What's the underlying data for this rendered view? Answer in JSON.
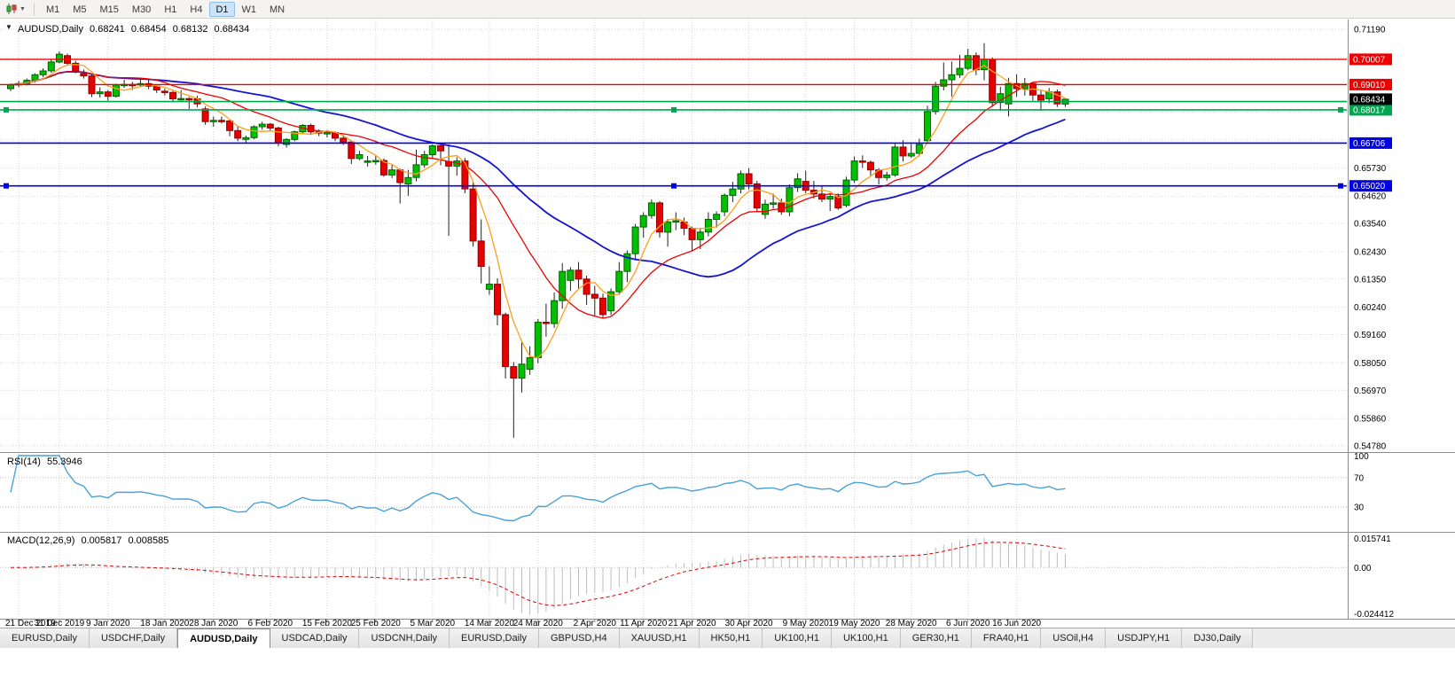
{
  "toolbar": {
    "chart_type_icon": "candlestick-chart-icon",
    "caret_glyph": "▼",
    "timeframes": [
      "M1",
      "M5",
      "M15",
      "M30",
      "H1",
      "H4",
      "D1",
      "W1",
      "MN"
    ],
    "active_timeframe": "D1"
  },
  "chart": {
    "symbol": "AUDUSD,Daily",
    "open": "0.68241",
    "high": "0.68454",
    "low": "0.68132",
    "close": "0.68434",
    "one_click_glyph": "▼"
  },
  "indicators": {
    "rsi": {
      "label": "RSI(14)",
      "value": "55.3946",
      "color": "#4aa1d8",
      "level_labels": [
        "100",
        "70",
        "30"
      ],
      "levels": [
        70,
        30
      ]
    },
    "macd": {
      "label": "MACD(12,26,9)",
      "main_value": "0.005817",
      "signal_value": "0.008585",
      "axis_labels": {
        "top": "0.015741",
        "zero": "0.00",
        "bottom": "-0.024412"
      },
      "bar_color": "#bdbdbd",
      "signal_color": "#e00000"
    }
  },
  "chart_data": {
    "type": "candlestick",
    "symbol": "AUDUSD",
    "timeframe": "Daily",
    "candles": [
      [
        0.6885,
        0.6905,
        0.6875,
        0.69
      ],
      [
        0.69,
        0.6915,
        0.689,
        0.6905
      ],
      [
        0.6905,
        0.6925,
        0.6898,
        0.6918
      ],
      [
        0.6918,
        0.6945,
        0.691,
        0.694
      ],
      [
        0.694,
        0.6965,
        0.693,
        0.6955
      ],
      [
        0.6955,
        0.7,
        0.6948,
        0.699
      ],
      [
        0.699,
        0.7032,
        0.6985,
        0.7021
      ],
      [
        0.7015,
        0.7023,
        0.6978,
        0.6985
      ],
      [
        0.6985,
        0.6995,
        0.6945,
        0.695
      ],
      [
        0.6945,
        0.696,
        0.6925,
        0.6935
      ],
      [
        0.6935,
        0.694,
        0.6852,
        0.6865
      ],
      [
        0.6865,
        0.689,
        0.685,
        0.6872
      ],
      [
        0.6872,
        0.688,
        0.6838,
        0.6855
      ],
      [
        0.6855,
        0.6905,
        0.685,
        0.69
      ],
      [
        0.69,
        0.692,
        0.6888,
        0.6902
      ],
      [
        0.6902,
        0.6912,
        0.688,
        0.69
      ],
      [
        0.69,
        0.6925,
        0.6893,
        0.6905
      ],
      [
        0.6905,
        0.692,
        0.6883,
        0.6895
      ],
      [
        0.6895,
        0.69,
        0.6868,
        0.688
      ],
      [
        0.6875,
        0.6885,
        0.6858,
        0.687
      ],
      [
        0.687,
        0.6876,
        0.6833,
        0.6845
      ],
      [
        0.6845,
        0.688,
        0.6838,
        0.6846
      ],
      [
        0.6846,
        0.6852,
        0.6805,
        0.6845
      ],
      [
        0.6845,
        0.6856,
        0.6812,
        0.6825
      ],
      [
        0.6805,
        0.6815,
        0.6743,
        0.6755
      ],
      [
        0.6755,
        0.6775,
        0.6735,
        0.676
      ],
      [
        0.676,
        0.6775,
        0.6748,
        0.6758
      ],
      [
        0.6758,
        0.6762,
        0.6698,
        0.672
      ],
      [
        0.672,
        0.6735,
        0.6678,
        0.669
      ],
      [
        0.6685,
        0.67,
        0.667,
        0.6692
      ],
      [
        0.6692,
        0.674,
        0.6685,
        0.6735
      ],
      [
        0.6735,
        0.6755,
        0.6723,
        0.6745
      ],
      [
        0.6745,
        0.675,
        0.6718,
        0.673
      ],
      [
        0.673,
        0.6735,
        0.6658,
        0.667
      ],
      [
        0.6665,
        0.669,
        0.6653,
        0.6685
      ],
      [
        0.6685,
        0.672,
        0.6678,
        0.6715
      ],
      [
        0.6715,
        0.6745,
        0.6708,
        0.674
      ],
      [
        0.674,
        0.6747,
        0.6703,
        0.6715
      ],
      [
        0.6715,
        0.6725,
        0.6698,
        0.671
      ],
      [
        0.671,
        0.6722,
        0.6693,
        0.6712
      ],
      [
        0.6712,
        0.6717,
        0.6678,
        0.669
      ],
      [
        0.669,
        0.67,
        0.6663,
        0.6675
      ],
      [
        0.6675,
        0.668,
        0.6588,
        0.661
      ],
      [
        0.661,
        0.664,
        0.6603,
        0.6625
      ],
      [
        0.66,
        0.662,
        0.6578,
        0.66
      ],
      [
        0.66,
        0.6625,
        0.6585,
        0.6602
      ],
      [
        0.6602,
        0.661,
        0.6538,
        0.6545
      ],
      [
        0.6545,
        0.6585,
        0.6533,
        0.6565
      ],
      [
        0.6565,
        0.657,
        0.6433,
        0.6515
      ],
      [
        0.651,
        0.6565,
        0.6463,
        0.6535
      ],
      [
        0.6535,
        0.6645,
        0.652,
        0.6585
      ],
      [
        0.6585,
        0.664,
        0.6573,
        0.6625
      ],
      [
        0.6625,
        0.6665,
        0.6608,
        0.666
      ],
      [
        0.666,
        0.6672,
        0.6583,
        0.664
      ],
      [
        0.6598,
        0.6665,
        0.6305,
        0.658
      ],
      [
        0.658,
        0.6615,
        0.6543,
        0.66
      ],
      [
        0.66,
        0.6612,
        0.6473,
        0.649
      ],
      [
        0.649,
        0.652,
        0.6263,
        0.6285
      ],
      [
        0.6285,
        0.637,
        0.6118,
        0.6185
      ],
      [
        0.6095,
        0.6185,
        0.6073,
        0.6115
      ],
      [
        0.6115,
        0.6138,
        0.5953,
        0.5995
      ],
      [
        0.5995,
        0.6003,
        0.5743,
        0.579
      ],
      [
        0.579,
        0.5808,
        0.551,
        0.5745
      ],
      [
        0.5745,
        0.5888,
        0.5688,
        0.58
      ],
      [
        0.578,
        0.587,
        0.5758,
        0.5825
      ],
      [
        0.5825,
        0.5978,
        0.5803,
        0.5965
      ],
      [
        0.5965,
        0.6038,
        0.5908,
        0.596
      ],
      [
        0.596,
        0.6082,
        0.5943,
        0.605
      ],
      [
        0.605,
        0.6198,
        0.6018,
        0.6165
      ],
      [
        0.613,
        0.6182,
        0.6088,
        0.617
      ],
      [
        0.617,
        0.6202,
        0.6098,
        0.6135
      ],
      [
        0.6135,
        0.6148,
        0.6033,
        0.6075
      ],
      [
        0.6075,
        0.6108,
        0.5988,
        0.606
      ],
      [
        0.606,
        0.6078,
        0.5983,
        0.5995
      ],
      [
        0.601,
        0.6098,
        0.5993,
        0.6085
      ],
      [
        0.6085,
        0.6202,
        0.6073,
        0.6165
      ],
      [
        0.6165,
        0.6248,
        0.6123,
        0.6235
      ],
      [
        0.6235,
        0.6352,
        0.6213,
        0.634
      ],
      [
        0.634,
        0.6398,
        0.6298,
        0.6385
      ],
      [
        0.6385,
        0.6448,
        0.6373,
        0.6435
      ],
      [
        0.6435,
        0.6442,
        0.6298,
        0.632
      ],
      [
        0.632,
        0.6372,
        0.6263,
        0.636
      ],
      [
        0.636,
        0.6398,
        0.6328,
        0.6365
      ],
      [
        0.636,
        0.6377,
        0.6308,
        0.6335
      ],
      [
        0.6335,
        0.6342,
        0.6248,
        0.629
      ],
      [
        0.629,
        0.6332,
        0.6253,
        0.632
      ],
      [
        0.632,
        0.6398,
        0.6303,
        0.637
      ],
      [
        0.637,
        0.6402,
        0.6338,
        0.639
      ],
      [
        0.64,
        0.6472,
        0.6383,
        0.6465
      ],
      [
        0.6465,
        0.6518,
        0.6438,
        0.649
      ],
      [
        0.649,
        0.6562,
        0.6473,
        0.655
      ],
      [
        0.655,
        0.6572,
        0.6488,
        0.651
      ],
      [
        0.651,
        0.6522,
        0.6398,
        0.6415
      ],
      [
        0.639,
        0.6448,
        0.6373,
        0.643
      ],
      [
        0.643,
        0.6472,
        0.6413,
        0.6435
      ],
      [
        0.6435,
        0.6452,
        0.6388,
        0.64
      ],
      [
        0.64,
        0.6508,
        0.6383,
        0.6495
      ],
      [
        0.6495,
        0.6552,
        0.6478,
        0.653
      ],
      [
        0.652,
        0.6562,
        0.6473,
        0.6485
      ],
      [
        0.6485,
        0.6522,
        0.6453,
        0.647
      ],
      [
        0.647,
        0.6502,
        0.6438,
        0.645
      ],
      [
        0.645,
        0.6472,
        0.6403,
        0.646
      ],
      [
        0.646,
        0.6472,
        0.6408,
        0.6415
      ],
      [
        0.6425,
        0.6538,
        0.6418,
        0.6525
      ],
      [
        0.6525,
        0.6618,
        0.6513,
        0.66
      ],
      [
        0.66,
        0.6622,
        0.6573,
        0.6595
      ],
      [
        0.6595,
        0.6602,
        0.6543,
        0.6565
      ],
      [
        0.6565,
        0.6572,
        0.6508,
        0.6535
      ],
      [
        0.6535,
        0.6558,
        0.6523,
        0.6545
      ],
      [
        0.6545,
        0.6668,
        0.6538,
        0.6655
      ],
      [
        0.6655,
        0.6682,
        0.6598,
        0.662
      ],
      [
        0.662,
        0.6668,
        0.6613,
        0.663
      ],
      [
        0.663,
        0.6688,
        0.6618,
        0.6665
      ],
      [
        0.668,
        0.6818,
        0.667,
        0.6795
      ],
      [
        0.6795,
        0.6912,
        0.6783,
        0.6895
      ],
      [
        0.6895,
        0.6988,
        0.6878,
        0.692
      ],
      [
        0.692,
        0.6992,
        0.6853,
        0.694
      ],
      [
        0.694,
        0.7018,
        0.6928,
        0.6965
      ],
      [
        0.6965,
        0.7042,
        0.6958,
        0.7015
      ],
      [
        0.7015,
        0.7028,
        0.6938,
        0.696
      ],
      [
        0.696,
        0.7064,
        0.6918,
        0.7
      ],
      [
        0.7,
        0.7008,
        0.6813,
        0.683
      ],
      [
        0.683,
        0.6892,
        0.6798,
        0.6865
      ],
      [
        0.6825,
        0.6928,
        0.6776,
        0.6905
      ],
      [
        0.6905,
        0.6942,
        0.6853,
        0.6885
      ],
      [
        0.6885,
        0.6927,
        0.6858,
        0.6905
      ],
      [
        0.6905,
        0.6912,
        0.6838,
        0.686
      ],
      [
        0.686,
        0.6877,
        0.6798,
        0.684
      ],
      [
        0.6845,
        0.6888,
        0.6828,
        0.6872
      ],
      [
        0.6872,
        0.6882,
        0.6813,
        0.6825
      ],
      [
        0.68241,
        0.68454,
        0.68132,
        0.68434
      ]
    ],
    "x_ticks": [
      {
        "label": "21 Dec 2019",
        "i": 1
      },
      {
        "label": "31 Dec 2019",
        "i": 6
      },
      {
        "label": "9 Jan 2020",
        "i": 12
      },
      {
        "label": "18 Jan 2020",
        "i": 19
      },
      {
        "label": "28 Jan 2020",
        "i": 25
      },
      {
        "label": "6 Feb 2020",
        "i": 32
      },
      {
        "label": "15 Feb 2020",
        "i": 39
      },
      {
        "label": "25 Feb 2020",
        "i": 45
      },
      {
        "label": "5 Mar 2020",
        "i": 52
      },
      {
        "label": "14 Mar 2020",
        "i": 59
      },
      {
        "label": "24 Mar 2020",
        "i": 65
      },
      {
        "label": "2 Apr 2020",
        "i": 72
      },
      {
        "label": "11 Apr 2020",
        "i": 78
      },
      {
        "label": "21 Apr 2020",
        "i": 84
      },
      {
        "label": "30 Apr 2020",
        "i": 91
      },
      {
        "label": "9 May 2020",
        "i": 98
      },
      {
        "label": "19 May 2020",
        "i": 104
      },
      {
        "label": "28 May 2020",
        "i": 111
      },
      {
        "label": "6 Jun 2020",
        "i": 118
      },
      {
        "label": "16 Jun 2020",
        "i": 124
      }
    ],
    "y_axis": {
      "range": [
        0.5478,
        0.7119
      ],
      "grid_prices": [
        0.7119,
        0.70098,
        0.69006,
        0.67914,
        0.66822,
        0.6573,
        0.6462,
        0.6354,
        0.6243,
        0.6135,
        0.6024,
        0.5916,
        0.5805,
        0.5697,
        0.5586,
        0.5478
      ],
      "visible_labels": [
        "0.71190",
        "0.65730",
        "0.64620",
        "0.63540",
        "0.62430",
        "0.61350",
        "0.60240",
        "0.59160",
        "0.58050",
        "0.56970",
        "0.55860",
        "0.54780"
      ]
    },
    "current_price_box": {
      "text": "0.68434",
      "price": 0.68434,
      "color": "#000000"
    },
    "hlines": [
      {
        "price": 0.70007,
        "label": "0.70007",
        "color": "#ee0000",
        "width": 1.4,
        "handles": false,
        "boxed": true
      },
      {
        "price": 0.6901,
        "label": "0.69010",
        "color": "#ee0000",
        "width": 1.4,
        "handles": false,
        "boxed": true
      },
      {
        "price": 0.6834,
        "label": "",
        "color": "#00a550",
        "width": 1.6,
        "handles": false,
        "boxed": false
      },
      {
        "price": 0.68017,
        "label": "0.68017",
        "color": "#00a550",
        "width": 1.6,
        "handles": true,
        "boxed": true
      },
      {
        "price": 0.66706,
        "label": "0.66706",
        "color": "#0000e6",
        "width": 1.6,
        "handles": false,
        "boxed": true
      },
      {
        "price": 0.6502,
        "label": "0.65020",
        "color": "#0000e6",
        "width": 1.6,
        "handles": true,
        "boxed": true
      }
    ],
    "moving_averages": [
      {
        "name": "fast",
        "period": 5,
        "color": "#ff9f1a",
        "width": 1.3
      },
      {
        "name": "medium",
        "period": 14,
        "color": "#f00000",
        "width": 1.3
      },
      {
        "name": "slow",
        "period": 30,
        "color": "#1414d2",
        "width": 1.8
      }
    ],
    "candle_colors": {
      "up_fill": "#00c000",
      "up_stroke": "#006000",
      "down_fill": "#e60000",
      "down_stroke": "#8f0000",
      "wick": "#222222"
    }
  },
  "tabs": {
    "active_index": 2,
    "items": [
      "EURUSD,Daily",
      "USDCHF,Daily",
      "AUDUSD,Daily",
      "USDCAD,Daily",
      "USDCNH,Daily",
      "EURUSD,Daily",
      "GBPUSD,H4",
      "XAUUSD,H1",
      "HK50,H1",
      "UK100,H1",
      "UK100,H1",
      "GER30,H1",
      "FRA40,H1",
      "USOil,H4",
      "USDJPY,H1",
      "DJ30,Daily"
    ]
  }
}
